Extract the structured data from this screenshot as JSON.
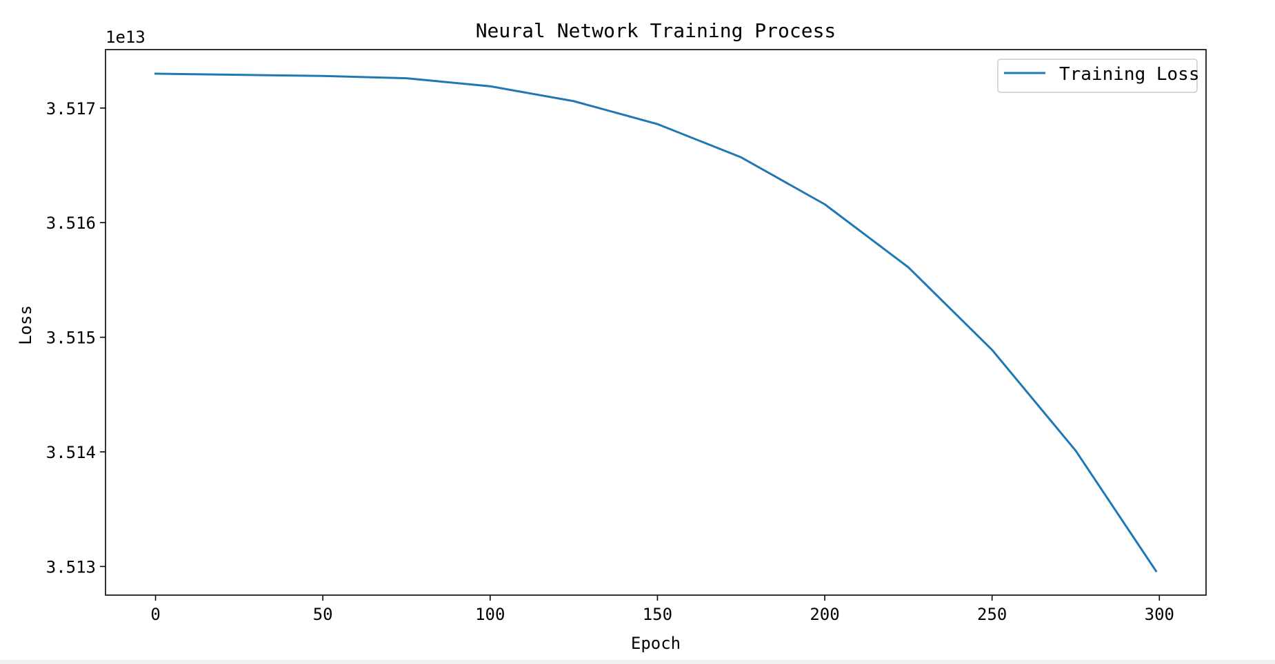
{
  "chart_data": {
    "type": "line",
    "title": "Neural Network Training Process",
    "xlabel": "Epoch",
    "ylabel": "Loss",
    "offset_label": "1e13",
    "xlim": [
      -14.95,
      313.95
    ],
    "ylim": [
      3.51275,
      3.51751
    ],
    "xticks": [
      0,
      50,
      100,
      150,
      200,
      250,
      300
    ],
    "xtick_labels": [
      "0",
      "50",
      "100",
      "150",
      "200",
      "250",
      "300"
    ],
    "yticks": [
      3.513,
      3.514,
      3.515,
      3.516,
      3.517
    ],
    "ytick_labels": [
      "3.513",
      "3.514",
      "3.515",
      "3.516",
      "3.517"
    ],
    "grid": false,
    "legend_position": "top-right",
    "series": [
      {
        "name": "Training Loss",
        "color": "#1f77b4",
        "x": [
          0,
          25,
          50,
          75,
          100,
          125,
          150,
          175,
          200,
          225,
          250,
          275,
          299
        ],
        "y": [
          3.5173,
          3.51729,
          3.51728,
          3.51726,
          3.51719,
          3.51706,
          3.51686,
          3.51657,
          3.51616,
          3.51561,
          3.51489,
          3.51401,
          3.51296
        ]
      }
    ]
  }
}
